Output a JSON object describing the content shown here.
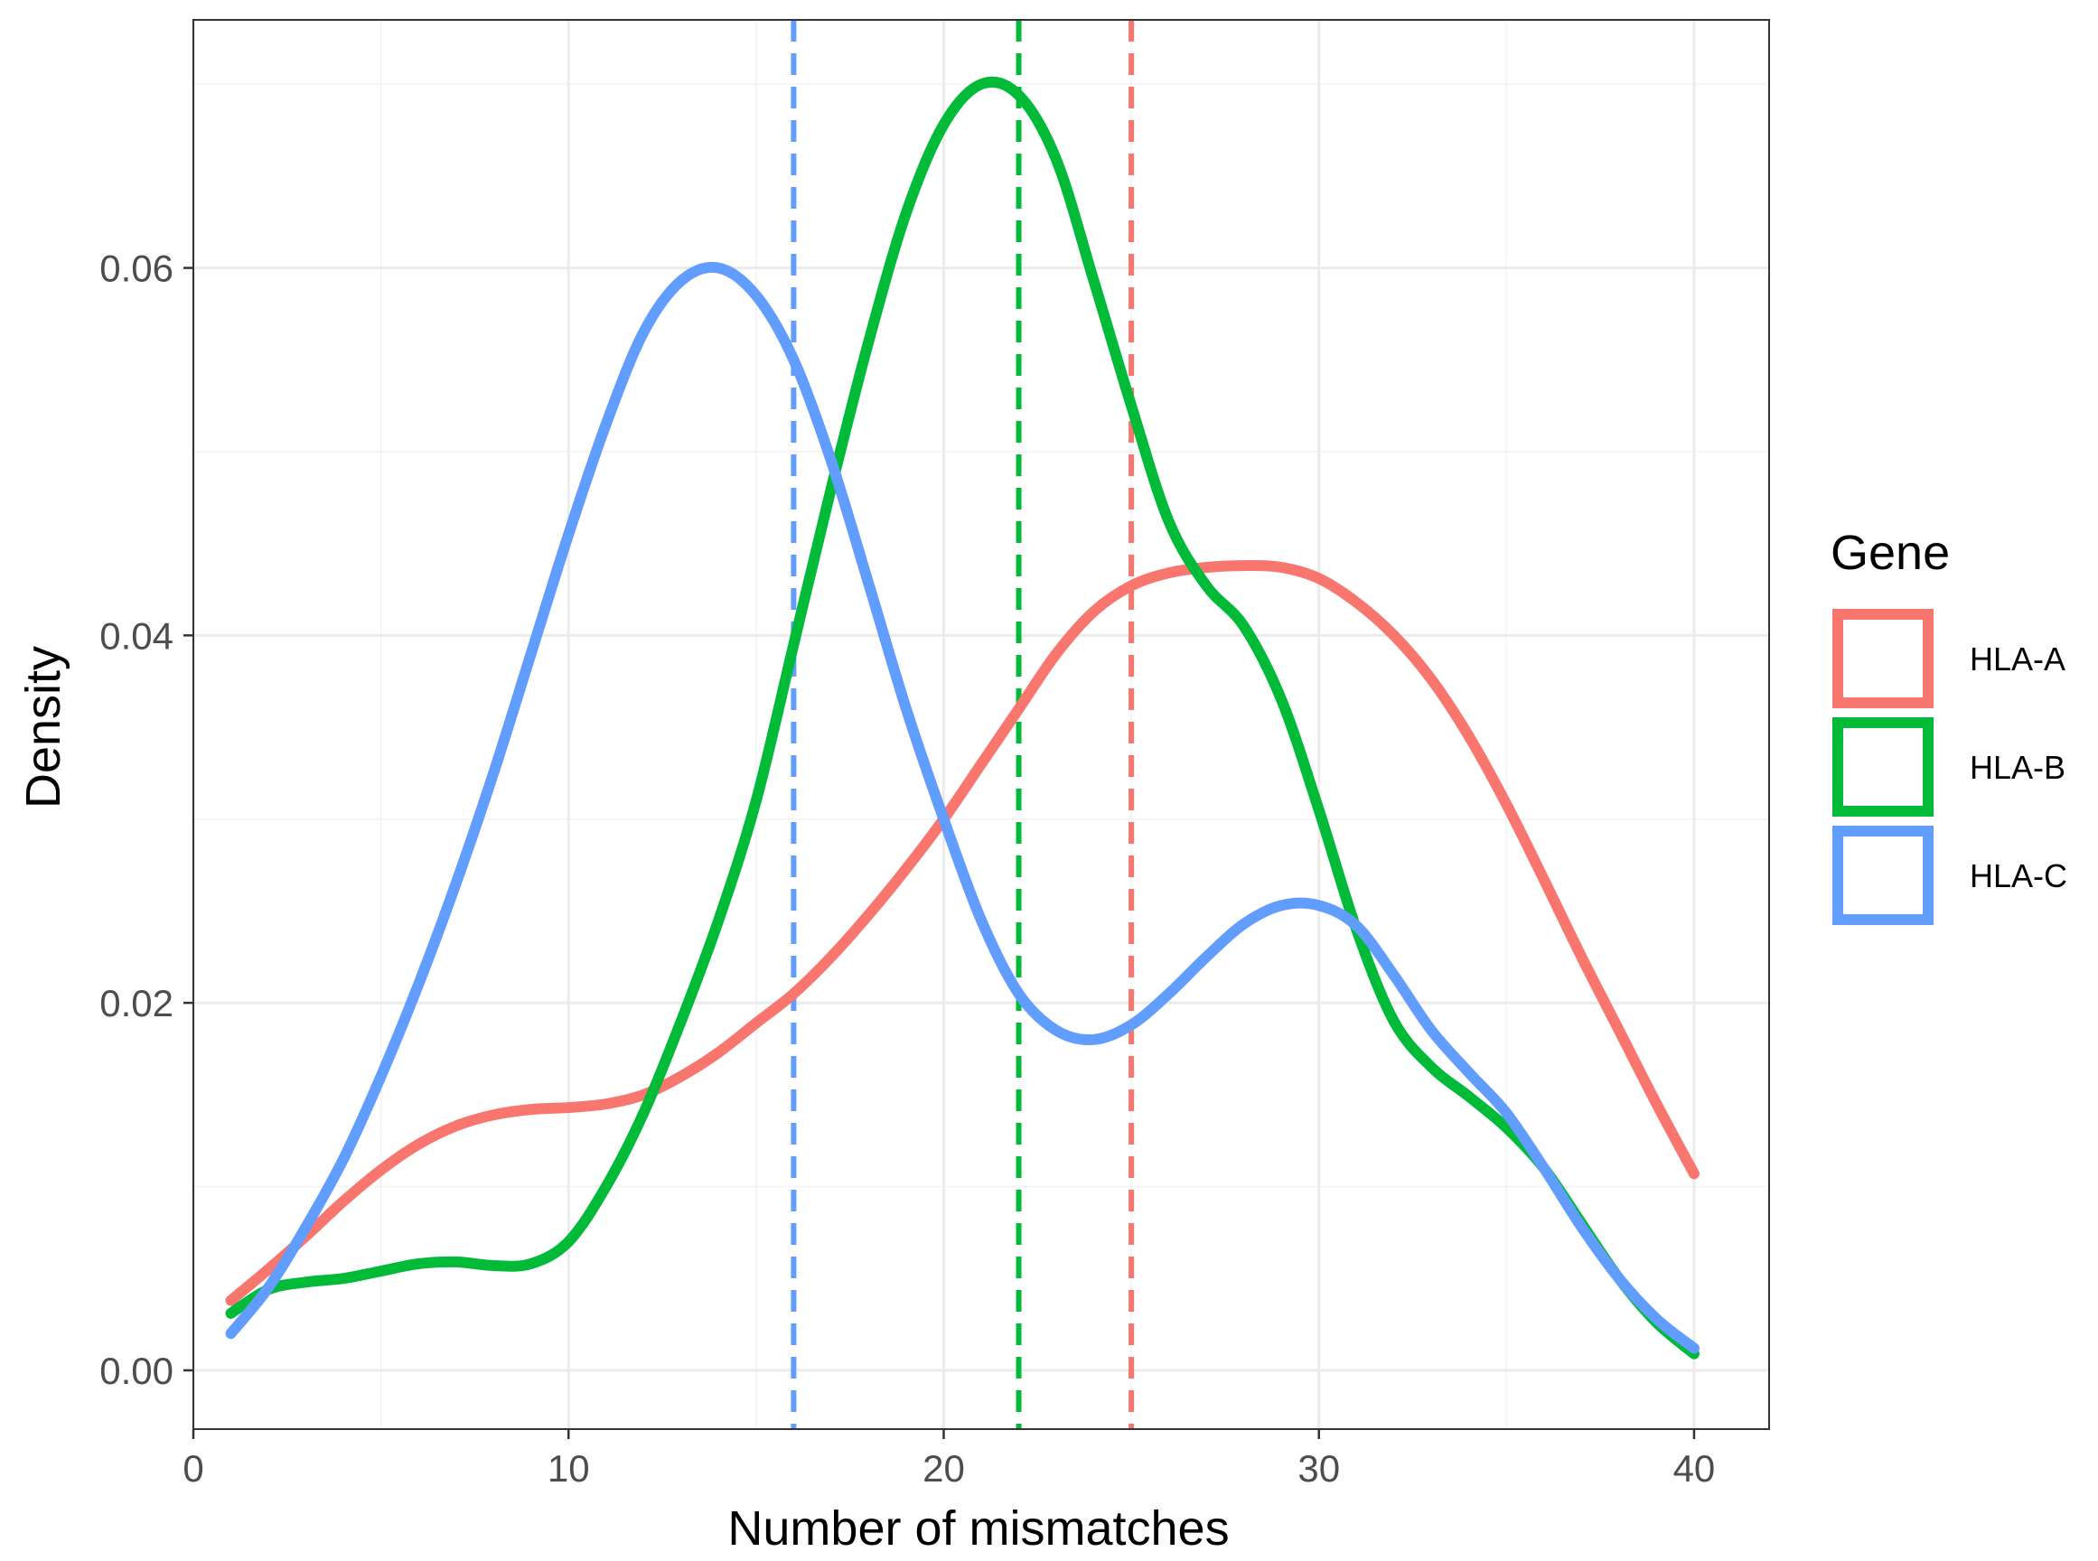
{
  "chart_data": {
    "type": "line",
    "xlabel": "Number of mismatches",
    "ylabel": "Density",
    "xlim": [
      0,
      42
    ],
    "ylim": [
      -0.0032,
      0.0735
    ],
    "x_ticks": [
      0,
      10,
      20,
      30,
      40
    ],
    "x_tick_labels": [
      "0",
      "10",
      "20",
      "30",
      "40"
    ],
    "y_ticks": [
      0.0,
      0.02,
      0.04,
      0.06
    ],
    "y_tick_labels": [
      "0.00",
      "0.02",
      "0.04",
      "0.06"
    ],
    "y_minor_ticks": [
      0.01,
      0.03,
      0.05,
      0.07
    ],
    "x_minor_ticks": [
      5,
      15,
      25,
      35
    ],
    "grid": true,
    "legend": {
      "title": "Gene",
      "placement": "right"
    },
    "series": [
      {
        "name": "HLA-A",
        "color": "#F8766D",
        "mean_line_x": 25,
        "x": [
          1,
          2,
          3,
          4,
          5,
          6,
          7,
          8,
          9,
          10,
          11,
          12,
          13,
          14,
          15,
          16,
          17,
          18,
          19,
          20,
          21,
          22,
          23,
          24,
          25,
          26,
          27,
          28,
          29,
          30,
          31,
          32,
          33,
          34,
          35,
          36,
          37,
          38,
          39,
          40
        ],
        "y": [
          0.0038,
          0.0055,
          0.0073,
          0.0092,
          0.0109,
          0.0123,
          0.0133,
          0.0139,
          0.0142,
          0.0143,
          0.0145,
          0.015,
          0.016,
          0.0173,
          0.0189,
          0.0205,
          0.0225,
          0.0248,
          0.0273,
          0.03,
          0.033,
          0.036,
          0.039,
          0.0413,
          0.0427,
          0.0434,
          0.0437,
          0.0438,
          0.0437,
          0.0431,
          0.0418,
          0.04,
          0.0376,
          0.0345,
          0.0308,
          0.0267,
          0.0225,
          0.0185,
          0.0145,
          0.0107
        ]
      },
      {
        "name": "HLA-B",
        "color": "#00BA38",
        "mean_line_x": 22,
        "x": [
          1,
          2,
          3,
          4,
          5,
          6,
          7,
          8,
          9,
          10,
          11,
          12,
          13,
          14,
          15,
          16,
          17,
          18,
          19,
          20,
          21,
          22,
          23,
          24,
          25,
          26,
          27,
          28,
          29,
          30,
          31,
          32,
          33,
          34,
          35,
          36,
          37,
          38,
          39,
          40
        ],
        "y": [
          0.0031,
          0.0044,
          0.0048,
          0.005,
          0.0054,
          0.0058,
          0.0059,
          0.0057,
          0.0058,
          0.007,
          0.01,
          0.014,
          0.019,
          0.0245,
          0.031,
          0.0395,
          0.048,
          0.056,
          0.063,
          0.0678,
          0.07,
          0.0694,
          0.0659,
          0.0593,
          0.0525,
          0.0462,
          0.0427,
          0.0405,
          0.0365,
          0.0305,
          0.024,
          0.019,
          0.0165,
          0.0149,
          0.0132,
          0.011,
          0.008,
          0.005,
          0.0026,
          0.0009
        ]
      },
      {
        "name": "HLA-C",
        "color": "#619CFF",
        "mean_line_x": 16,
        "x": [
          1,
          2,
          3,
          4,
          5,
          6,
          7,
          8,
          9,
          10,
          11,
          12,
          13,
          14,
          15,
          16,
          17,
          18,
          19,
          20,
          21,
          22,
          23,
          24,
          25,
          26,
          27,
          28,
          29,
          30,
          31,
          32,
          33,
          34,
          35,
          36,
          37,
          38,
          39,
          40
        ],
        "y": [
          0.002,
          0.0045,
          0.0078,
          0.0115,
          0.016,
          0.021,
          0.0265,
          0.0325,
          0.039,
          0.0455,
          0.0515,
          0.0565,
          0.0593,
          0.06,
          0.0585,
          0.055,
          0.0495,
          0.0428,
          0.036,
          0.03,
          0.0245,
          0.0205,
          0.0185,
          0.018,
          0.0188,
          0.0205,
          0.0225,
          0.0243,
          0.0253,
          0.0253,
          0.0242,
          0.0215,
          0.0185,
          0.0162,
          0.014,
          0.011,
          0.0078,
          0.005,
          0.0028,
          0.0012
        ]
      }
    ]
  }
}
